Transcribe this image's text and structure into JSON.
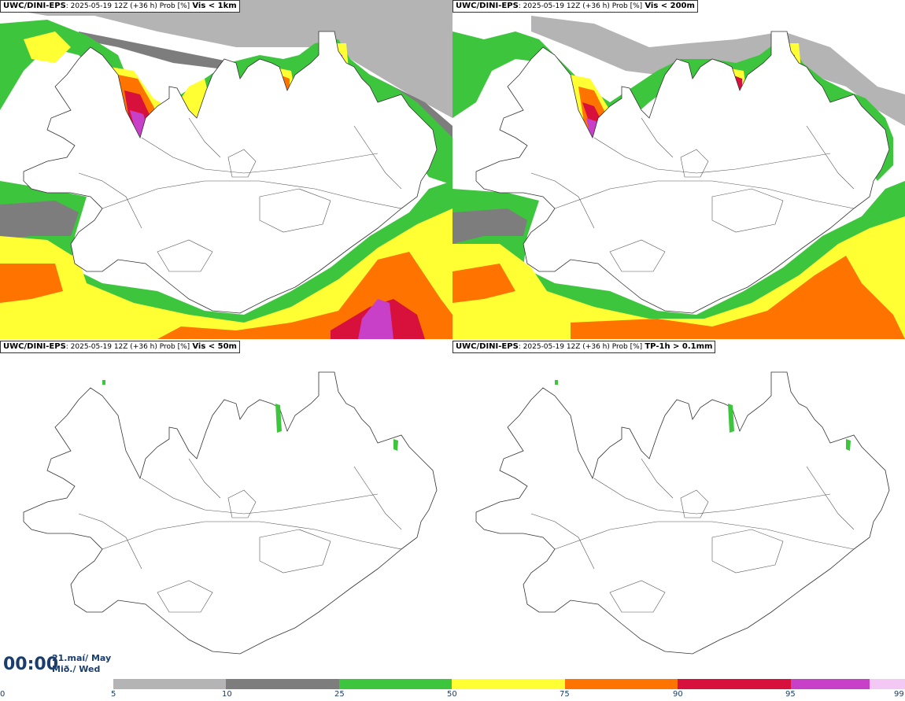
{
  "panels": [
    {
      "model": "UWC/DINI-EPS",
      "meta": ": 2025-05-19 12Z (+36 h) Prob [%]",
      "variable": "Vis < 1km",
      "fill": "heavy"
    },
    {
      "model": "UWC/DINI-EPS",
      "meta": ": 2025-05-19 12Z (+36 h) Prob [%]",
      "variable": "Vis < 200m",
      "fill": "medium"
    },
    {
      "model": "UWC/DINI-EPS",
      "meta": ": 2025-05-19 12Z (+36 h) Prob [%]",
      "variable": "Vis < 50m",
      "fill": "light"
    },
    {
      "model": "UWC/DINI-EPS",
      "meta": ": 2025-05-19 12Z (+36 h) Prob [%]",
      "variable": "TP-1h > 0.1mm",
      "fill": "light"
    }
  ],
  "valid_time": "00:00",
  "date_line1": "21.maí/ May",
  "date_line2": "Mið./ Wed",
  "legend": {
    "ticks": [
      "0",
      "5",
      "10",
      "25",
      "50",
      "75",
      "90",
      "95",
      "99"
    ],
    "colors": [
      "#b4b4b4",
      "#7d7d7d",
      "#3ec53e",
      "#ffff33",
      "#ff7300",
      "#d8103c",
      "#c840c8",
      "#f4c8f4"
    ]
  }
}
